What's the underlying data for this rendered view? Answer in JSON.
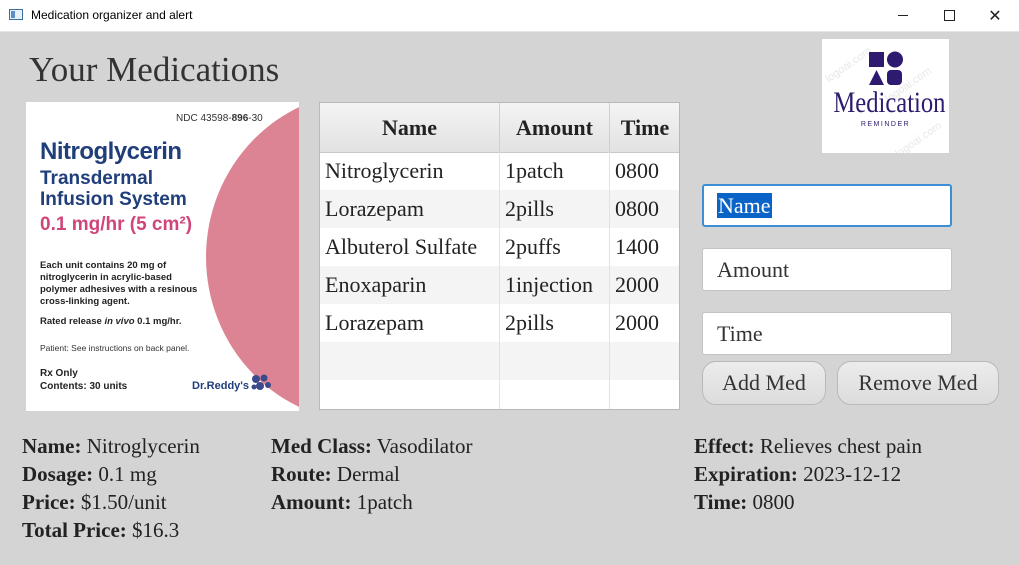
{
  "window": {
    "title": "Medication organizer and alert"
  },
  "page": {
    "title": "Your Medications"
  },
  "label_image": {
    "ndc_prefix": "NDC 43598-",
    "ndc_bold": "896",
    "ndc_suffix": "-30",
    "drug_name": "Nitroglycerin",
    "line1": "Transdermal",
    "line2": "Infusion System",
    "dose": "0.1 mg/hr (5 cm²)",
    "description": "Each unit contains 20 mg of nitroglycerin in acrylic-based polymer adhesives with a resinous cross-linking agent.",
    "rated_prefix": "Rated release ",
    "rated_italic": "in vivo",
    "rated_suffix": " 0.1 mg/hr.",
    "patient_note": "Patient: See instructions on back panel.",
    "rx_only": "Rx Only",
    "contents": "Contents: 30 units",
    "brand": "Dr.Reddy's",
    "accent_color": "#dc8493",
    "text_color": "#1f3e7a"
  },
  "table": {
    "headers": [
      "Name",
      "Amount",
      "Time"
    ],
    "rows": [
      [
        "Nitroglycerin",
        "1patch",
        "0800"
      ],
      [
        "Lorazepam",
        "2pills",
        "0800"
      ],
      [
        "Albuterol Sulfate",
        "2puffs",
        "1400"
      ],
      [
        "Enoxaparin",
        "1injection",
        "2000"
      ],
      [
        "Lorazepam",
        "2pills",
        "2000"
      ]
    ]
  },
  "logo": {
    "title": "Medication",
    "subtitle": "REMINDER",
    "watermark": "logoai.com",
    "color": "#2e1a6e"
  },
  "form": {
    "name_value": "Name",
    "amount_value": "Amount",
    "time_value": "Time",
    "add_label": "Add Med",
    "remove_label": "Remove Med"
  },
  "details": {
    "name_label": "Name:",
    "name_value": "Nitroglycerin",
    "dosage_label": "Dosage:",
    "dosage_value": "0.1 mg",
    "price_label": "Price:",
    "price_value": "$1.50/unit",
    "total_label": "Total Price:",
    "total_value": "$16.3",
    "class_label": "Med Class:",
    "class_value": "Vasodilator",
    "route_label": "Route:",
    "route_value": "Dermal",
    "amount_label": "Amount:",
    "amount_value": "1patch",
    "effect_label": "Effect:",
    "effect_value": "Relieves chest pain",
    "expiration_label": "Expiration:",
    "expiration_value": "2023-12-12",
    "time_label": "Time:",
    "time_value": "0800"
  }
}
